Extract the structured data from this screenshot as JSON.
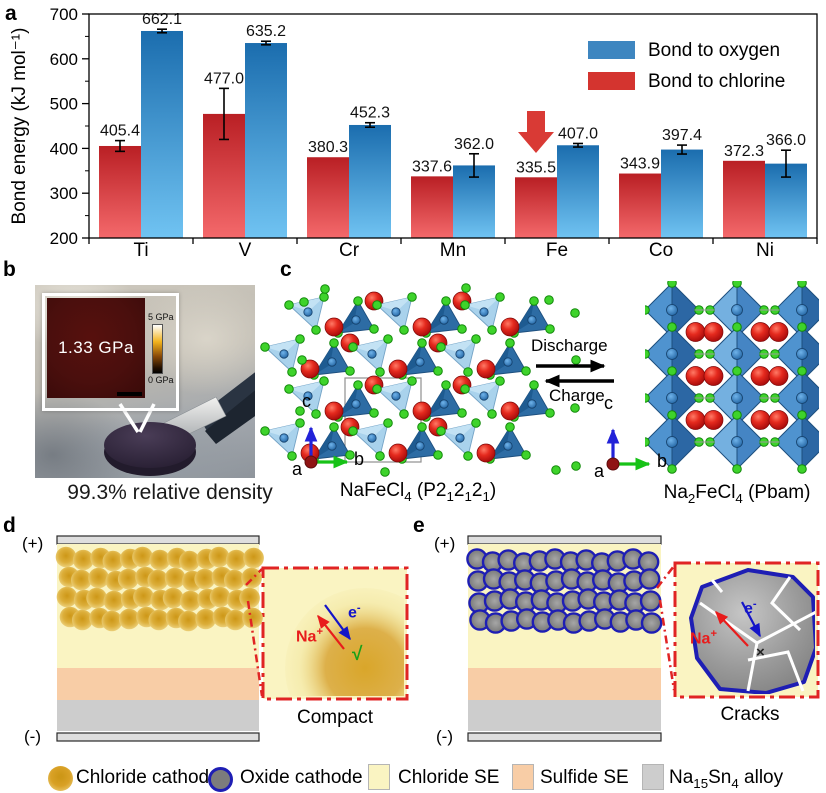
{
  "figure": {
    "panel_labels": {
      "a": "a",
      "b": "b",
      "c": "c",
      "d": "d",
      "e": "e"
    }
  },
  "chart_data": {
    "type": "bar",
    "title": "",
    "ylabel": "Bond energy (kJ mol⁻¹)",
    "ylim": [
      200,
      700
    ],
    "yticks": [
      200,
      300,
      400,
      500,
      600,
      700
    ],
    "minor_yticks": [
      250,
      350,
      450,
      550,
      650
    ],
    "categories": [
      "Ti",
      "V",
      "Cr",
      "Mn",
      "Fe",
      "Co",
      "Ni"
    ],
    "series": [
      {
        "name": "Bond to chlorine",
        "values": [
          405.4,
          477.0,
          380.3,
          337.6,
          335.5,
          343.9,
          372.3
        ],
        "labels": [
          "405.4",
          "477.0",
          "380.3",
          "337.6",
          "335.5",
          "343.9",
          "372.3"
        ],
        "errors": [
          12,
          57,
          0,
          0,
          0,
          0,
          0
        ],
        "legend_color": "#d4342f",
        "gradient_top": "#b91f24",
        "gradient_bottom": "#f4696b"
      },
      {
        "name": "Bond to oxygen",
        "values": [
          662.1,
          635.2,
          452.3,
          362.0,
          407.0,
          397.4,
          366.0
        ],
        "labels": [
          "662.1",
          "635.2",
          "452.3",
          "362.0",
          "407.0",
          "397.4",
          "366.0"
        ],
        "errors": [
          4,
          4,
          5,
          26,
          4,
          10,
          30
        ],
        "legend_color": "#3e86c0",
        "gradient_top": "#1b6dae",
        "gradient_bottom": "#70c3f2"
      }
    ],
    "legend_order": [
      "Bond to oxygen",
      "Bond to chlorine"
    ],
    "legend_position": "top-right",
    "grid": false,
    "annotation": {
      "type": "down-arrow",
      "category": "Fe",
      "series": "Bond to chlorine",
      "color": "#d93a35"
    }
  },
  "panel_b": {
    "inset_value": "1.33 GPa",
    "colorbar_top": "5 GPa",
    "colorbar_bottom": "0 GPa",
    "caption": "99.3% relative density"
  },
  "panel_c": {
    "discharge": "Discharge",
    "charge": "Charge",
    "left_label": "NaFeCl~4~ (P2~1~2~1~2~1~)",
    "right_label": "Na~2~FeCl~4~ (Pbam)",
    "axis_a": "a",
    "axis_b": "b",
    "axis_c": "c"
  },
  "panel_d": {
    "plus": "(+)",
    "minus": "(-)",
    "inset": {
      "na_label": "Na^+^",
      "e_label": "e^-^",
      "check": "√"
    },
    "caption": "Compact"
  },
  "panel_e": {
    "plus": "(+)",
    "minus": "(-)",
    "inset": {
      "na_label": "Na^+^",
      "e_label": "e^-^",
      "cross": "×"
    },
    "caption": "Cracks"
  },
  "materials": {
    "chloride_cathode": {
      "label": "Chloride cathode",
      "color": "#d9a126",
      "color_edge": "#eed584"
    },
    "oxide_cathode": {
      "label": "Oxide cathode",
      "fill": "#7c7c7c",
      "border": "#1e1eb4"
    },
    "chloride_se": {
      "label": "Chloride SE",
      "color": "#faf4c2"
    },
    "sulfide_se": {
      "label": "Sulfide SE",
      "color": "#f8cda6"
    },
    "alloy": {
      "label": "Na~15~Sn~4~ alloy",
      "color": "#cdcdcd"
    }
  }
}
